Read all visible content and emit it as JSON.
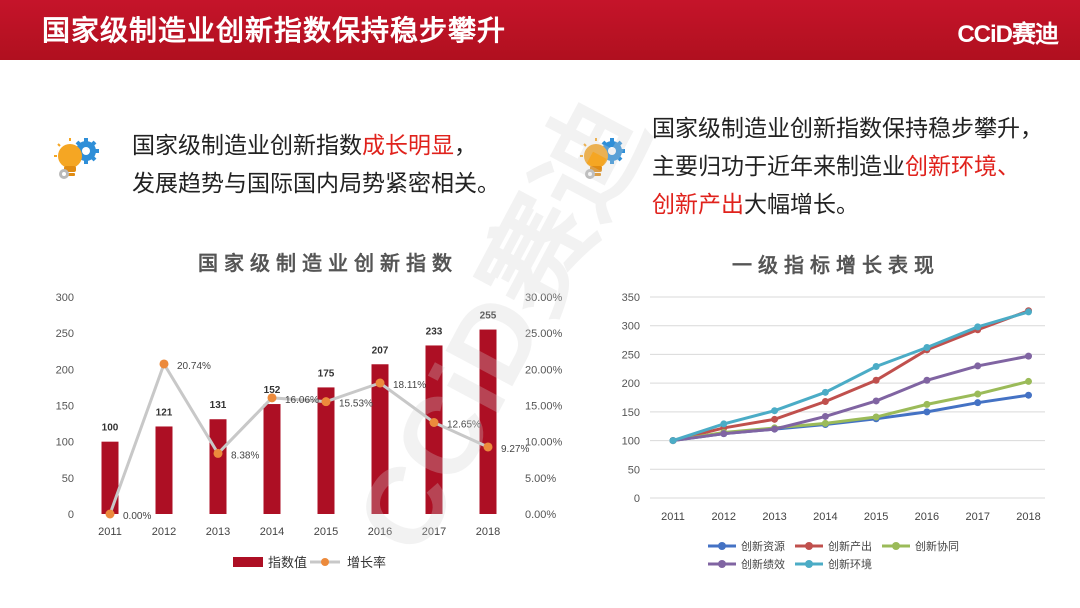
{
  "header": {
    "title": "国家级制造业创新指数保持稳步攀升",
    "brand": "CCiD赛迪"
  },
  "points": [
    {
      "line1_pre": "国家级制造业创新指数",
      "line1_hl": "成长明显",
      "line1_post": "，",
      "line2": "发展趋势与国际国内局势紧密相关。"
    },
    {
      "line1": "国家级制造业创新指数保持稳步攀升，",
      "line2_pre": "主要归功于近年来制造业",
      "line2_hl": "创新环境、",
      "line3_hl": "创新产出",
      "line3_post": "大幅增长。"
    }
  ],
  "watermark": "CCiD赛迪",
  "colors": {
    "header": "#b8111f",
    "highlight": "#e0221c",
    "bar": "#ad0f24",
    "rate_line": "#c8c8c8",
    "rate_marker": "#ec8a3c"
  },
  "chart_data": [
    {
      "type": "bar",
      "title": "国家级制造业创新指数",
      "categories": [
        "2011",
        "2012",
        "2013",
        "2014",
        "2015",
        "2016",
        "2017",
        "2018"
      ],
      "series": [
        {
          "name": "指数值",
          "type": "bar",
          "axis": "left",
          "values": [
            100,
            121,
            131,
            152,
            175,
            207,
            233,
            255
          ],
          "labels": [
            "100",
            "121",
            "131",
            "152",
            "175",
            "207",
            "233",
            "255"
          ],
          "color": "#ad0f24"
        },
        {
          "name": "增长率",
          "type": "line",
          "axis": "right",
          "values": [
            0.0,
            20.74,
            8.38,
            16.06,
            15.53,
            18.11,
            12.65,
            9.27
          ],
          "labels": [
            "0.00%",
            "20.74%",
            "8.38%",
            "16.06%",
            "15.53%",
            "18.11%",
            "12.65%",
            "9.27%"
          ],
          "color": "#c8c8c8",
          "marker_color": "#ec8a3c"
        }
      ],
      "y_left": {
        "ylim": [
          0,
          300
        ],
        "ticks": [
          "0",
          "50",
          "100",
          "150",
          "200",
          "250",
          "300"
        ]
      },
      "y_right": {
        "ylim": [
          0,
          30
        ],
        "ticks": [
          "0.00%",
          "5.00%",
          "10.00%",
          "15.00%",
          "20.00%",
          "25.00%",
          "30.00%"
        ]
      },
      "legend": "bottom"
    },
    {
      "type": "line",
      "title": "一级指标增长表现",
      "categories": [
        "2011",
        "2012",
        "2013",
        "2014",
        "2015",
        "2016",
        "2017",
        "2018"
      ],
      "ylim": [
        0,
        350
      ],
      "yticks": [
        "0",
        "50",
        "100",
        "150",
        "200",
        "250",
        "300",
        "350"
      ],
      "grid": true,
      "series": [
        {
          "name": "创新资源",
          "color": "#4472c4",
          "values": [
            100,
            112,
            120,
            128,
            138,
            150,
            166,
            179
          ]
        },
        {
          "name": "创新产出",
          "color": "#c0504d",
          "values": [
            100,
            122,
            137,
            168,
            205,
            258,
            293,
            326
          ]
        },
        {
          "name": "创新协同",
          "color": "#9bbb59",
          "values": [
            100,
            114,
            122,
            130,
            141,
            163,
            181,
            203
          ]
        },
        {
          "name": "创新绩效",
          "color": "#8064a2",
          "values": [
            100,
            112,
            120,
            142,
            169,
            205,
            230,
            247
          ]
        },
        {
          "name": "创新环境",
          "color": "#4bacc6",
          "values": [
            100,
            129,
            152,
            184,
            229,
            262,
            298,
            324
          ]
        }
      ],
      "legend": "bottom"
    }
  ]
}
